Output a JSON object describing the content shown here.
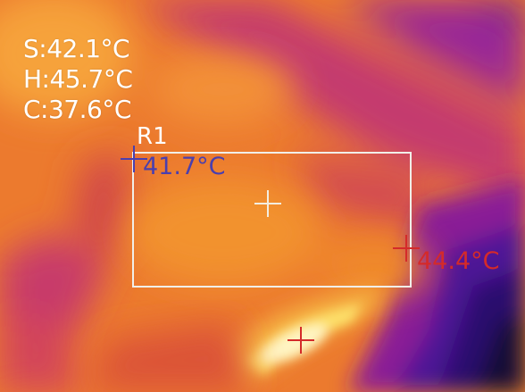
{
  "readout": {
    "spot": "S:42.1°C",
    "high": "H:45.7°C",
    "center": "C:37.6°C"
  },
  "roi": {
    "label": "R1",
    "min_temp": "41.7°C",
    "max_temp": "44.4°C"
  },
  "palette": {
    "cold": "#1a0a3a",
    "purple": "#8a1f96",
    "magenta": "#c42a8c",
    "red": "#e0443a",
    "orange": "#f08a2a",
    "yellow": "#fde06a",
    "white_hot": "#fffbe6"
  },
  "colors": {
    "min_marker": "#4a3fae",
    "max_marker": "#d42a2a",
    "roi_box": "#f1efe9"
  }
}
